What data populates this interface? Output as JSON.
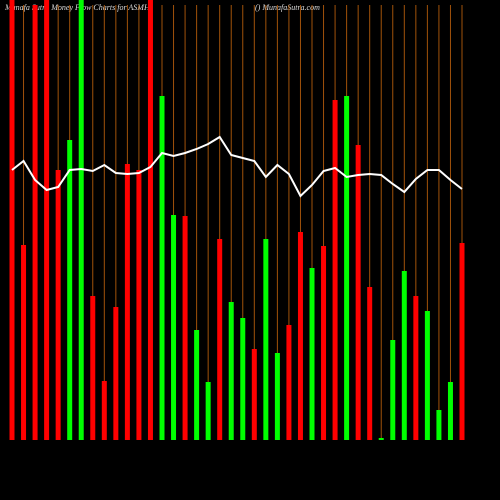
{
  "chart_data": {
    "type": "bar-line",
    "title": "Munafa Sutra  Money Flow  Charts for ASMH",
    "subtitle": "() MunafaSutra.com",
    "categories": [
      null,
      null,
      null,
      null,
      null,
      null,
      null,
      null,
      null,
      null,
      null,
      null,
      null,
      null,
      null,
      null,
      null,
      null,
      null,
      null,
      null,
      null,
      null,
      null,
      null,
      null,
      null,
      null,
      null,
      null,
      null,
      null,
      null,
      null,
      null,
      null,
      null,
      null,
      null,
      null
    ],
    "ylim": [
      0,
      440
    ],
    "separator_color": "#a0520a",
    "series": [
      {
        "type": "bar",
        "values": [
          440,
          195,
          435,
          440,
          270,
          300,
          440,
          144,
          59,
          133,
          276,
          270,
          440,
          344,
          225,
          224,
          110,
          58,
          201,
          138,
          122,
          91,
          201,
          87,
          115,
          208,
          172,
          194,
          340,
          344,
          295,
          153,
          2,
          100,
          169,
          144,
          129,
          30,
          58,
          197
        ],
        "colors": [
          "#ff0000",
          "#ff0000",
          "#ff0000",
          "#ff0000",
          "#ff0000",
          "#00ff00",
          "#00ff00",
          "#ff0000",
          "#ff0000",
          "#ff0000",
          "#ff0000",
          "#ff0000",
          "#ff0000",
          "#00ff00",
          "#00ff00",
          "#ff0000",
          "#00ff00",
          "#00ff00",
          "#ff0000",
          "#00ff00",
          "#00ff00",
          "#ff0000",
          "#00ff00",
          "#00ff00",
          "#ff0000",
          "#ff0000",
          "#00ff00",
          "#ff0000",
          "#ff0000",
          "#00ff00",
          "#ff0000",
          "#ff0000",
          "#00ff00",
          "#00ff00",
          "#00ff00",
          "#ff0000",
          "#00ff00",
          "#00ff00",
          "#00ff00",
          "#ff0000"
        ]
      },
      {
        "type": "line",
        "color": "#ffffff",
        "values": [
          270,
          279,
          260,
          250,
          253,
          270,
          271,
          269,
          275,
          267,
          266,
          267,
          273,
          287,
          284,
          287,
          291,
          296,
          303,
          285,
          282,
          279,
          263,
          275,
          266,
          244,
          255,
          269,
          272,
          263,
          265,
          266,
          265,
          256,
          248,
          261,
          270,
          270,
          260,
          251
        ]
      }
    ]
  }
}
